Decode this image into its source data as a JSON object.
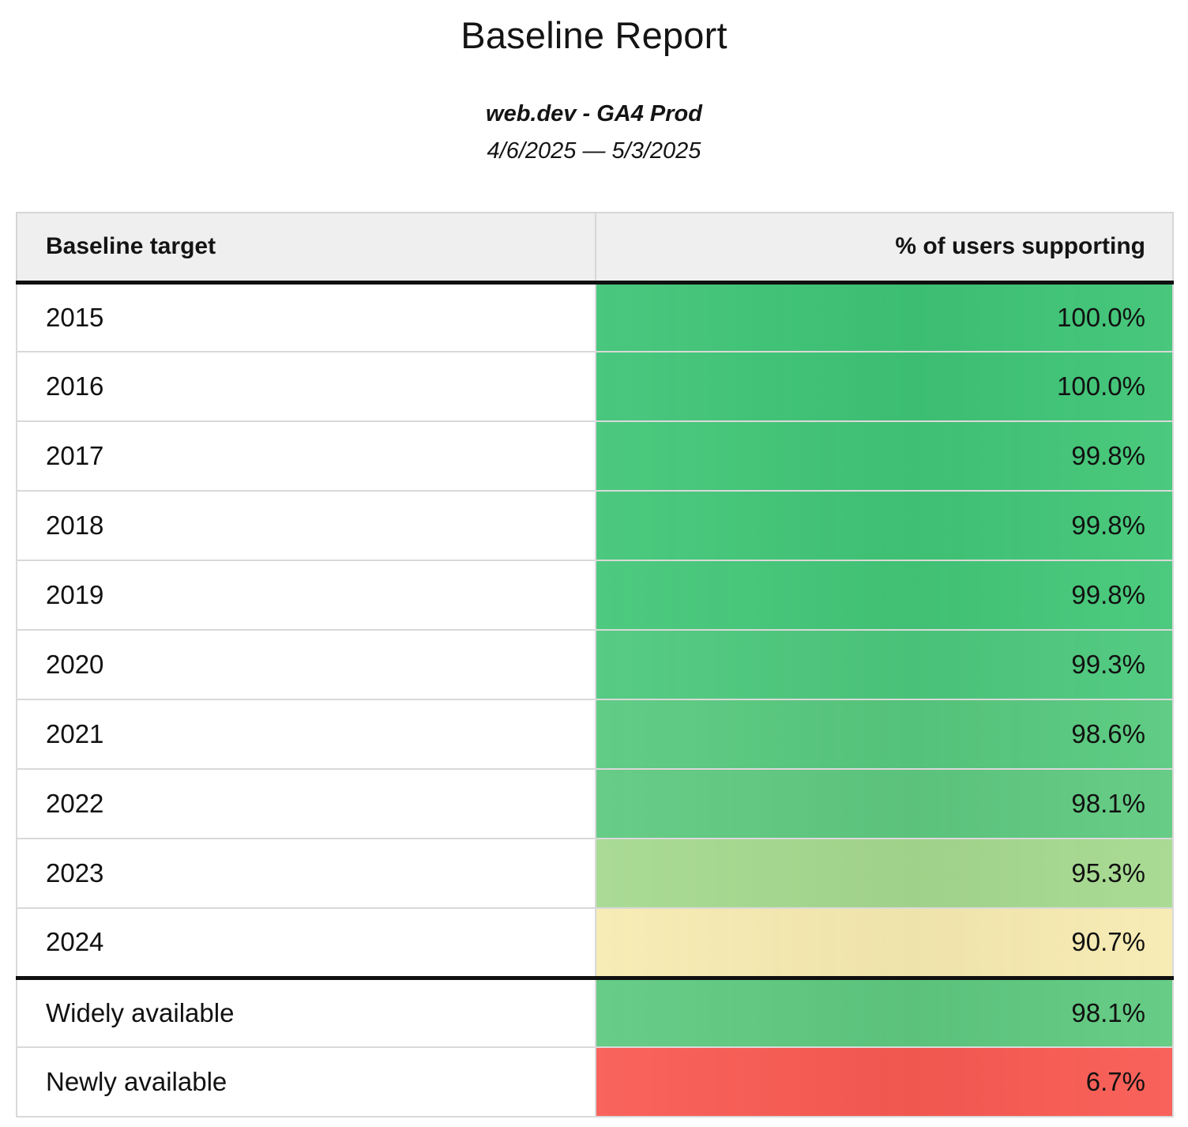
{
  "report": {
    "title": "Baseline Report",
    "source": "web.dev - GA4 Prod",
    "date_range": "4/6/2025 — 5/3/2025"
  },
  "table": {
    "columns": {
      "target": "Baseline target",
      "support": "% of users supporting"
    },
    "rows": [
      {
        "label": "2015",
        "value": "100.0%",
        "color": "#3ec476"
      },
      {
        "label": "2016",
        "value": "100.0%",
        "color": "#3ec476"
      },
      {
        "label": "2017",
        "value": "99.8%",
        "color": "#41c677"
      },
      {
        "label": "2018",
        "value": "99.8%",
        "color": "#41c677"
      },
      {
        "label": "2019",
        "value": "99.8%",
        "color": "#43c778"
      },
      {
        "label": "2020",
        "value": "99.3%",
        "color": "#4cc87c"
      },
      {
        "label": "2021",
        "value": "98.6%",
        "color": "#57c97e"
      },
      {
        "label": "2022",
        "value": "98.1%",
        "color": "#5ec980"
      },
      {
        "label": "2023",
        "value": "95.3%",
        "color": "#a5d98f"
      },
      {
        "label": "2024",
        "value": "90.7%",
        "color": "#f7ebb1"
      },
      {
        "label": "Widely available",
        "value": "98.1%",
        "color": "#5ec980"
      },
      {
        "label": "Newly available",
        "value": "6.7%",
        "color": "#f95a52"
      }
    ]
  },
  "colors": {
    "header_background": "#efefef",
    "thick_rule": "#101010",
    "row_divider": "#d9d9d9"
  },
  "chart_data": {
    "type": "table",
    "title": "Baseline Report",
    "subtitle": "web.dev - GA4 Prod",
    "date_range": "4/6/2025 — 5/3/2025",
    "columns": [
      "Baseline target",
      "% of users supporting"
    ],
    "categories": [
      "2015",
      "2016",
      "2017",
      "2018",
      "2019",
      "2020",
      "2021",
      "2022",
      "2023",
      "2024",
      "Widely available",
      "Newly available"
    ],
    "values": [
      100.0,
      100.0,
      99.8,
      99.8,
      99.8,
      99.3,
      98.6,
      98.1,
      95.3,
      90.7,
      98.1,
      6.7
    ],
    "value_unit": "%",
    "color_scale": {
      "high": "#3ec476",
      "mid": "#f7ebb1",
      "low": "#f95a52"
    },
    "layout_hints": {
      "value_alignment": "right",
      "label_alignment": "left",
      "section_break_before": "Widely available"
    }
  }
}
